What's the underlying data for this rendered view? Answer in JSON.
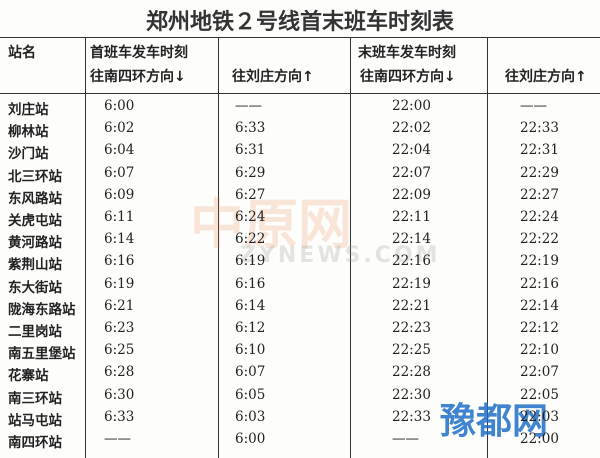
{
  "title": "郑州地铁２号线首末班车时刻表",
  "table": {
    "header": {
      "station": "站名",
      "first": "首班车发车时刻",
      "last": "末班车发车时刻",
      "cols": [
        "往南四环方向↓",
        "往刘庄方向↑",
        "往南四环方向↓",
        "往刘庄方向↑"
      ]
    },
    "rows": [
      [
        "刘庄站",
        "6:00",
        "——",
        "22:00",
        "——"
      ],
      [
        "柳林站",
        "6:02",
        "6:33",
        "22:02",
        "22:33"
      ],
      [
        "沙门站",
        "6:04",
        "6:31",
        "22:04",
        "22:31"
      ],
      [
        "北三环站",
        "6:07",
        "6:29",
        "22:07",
        "22:29"
      ],
      [
        "东风路站",
        "6:09",
        "6:27",
        "22:09",
        "22:27"
      ],
      [
        "关虎屯站",
        "6:11",
        "6:24",
        "22:11",
        "22:24"
      ],
      [
        "黄河路站",
        "6:14",
        "6:22",
        "22:14",
        "22:22"
      ],
      [
        "紫荆山站",
        "6:16",
        "6:19",
        "22:16",
        "22:19"
      ],
      [
        "东大街站",
        "6:19",
        "6:16",
        "22:19",
        "22:16"
      ],
      [
        "陇海东路站",
        "6:21",
        "6:14",
        "22:21",
        "22:14"
      ],
      [
        "二里岗站",
        "6:23",
        "6:12",
        "22:23",
        "22:12"
      ],
      [
        "南五里堡站",
        "6:25",
        "6:10",
        "22:25",
        "22:10"
      ],
      [
        "花寨站",
        "6:28",
        "6:07",
        "22:28",
        "22:07"
      ],
      [
        "南三环站",
        "6:30",
        "6:05",
        "22:30",
        "22:05"
      ],
      [
        "站马屯站",
        "6:33",
        "6:03",
        "22:33",
        "22:03"
      ],
      [
        "南四环站",
        "——",
        "6:00",
        "——",
        "22:00"
      ]
    ]
  },
  "watermarks": [
    "中原网",
    "ZYNEWS.COM",
    "豫都网"
  ]
}
